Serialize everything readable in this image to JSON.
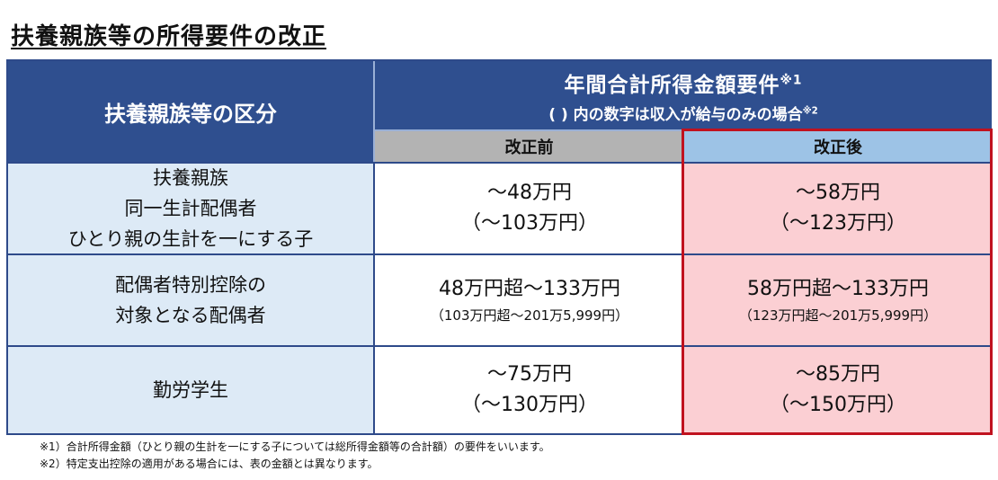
{
  "title": "扶養親族等の所得要件の改正",
  "header": {
    "category_label": "扶養親族等の区分",
    "requirement_line1": "年間合計所得金額要件",
    "requirement_line1_mark": "※1",
    "requirement_line2": "( ) 内の数字は収入が給与のみの場合",
    "requirement_line2_mark": "※2",
    "before_label": "改正前",
    "after_label": "改正後"
  },
  "rows": [
    {
      "category": [
        "扶養親族",
        "同一生計配偶者",
        "ひとり親の生計を一にする子"
      ],
      "before_main": "～48万円",
      "before_sub": "（～103万円）",
      "after_main": "～58万円",
      "after_sub": "（～123万円）"
    },
    {
      "category": [
        "配偶者特別控除の",
        "対象となる配偶者"
      ],
      "before_main": "48万円超～133万円",
      "before_sub": "（103万円超～201万5,999円）",
      "after_main": "58万円超～133万円",
      "after_sub": "（123万円超～201万5,999円）"
    },
    {
      "category": [
        "勤労学生"
      ],
      "before_main": "～75万円",
      "before_sub": "（～130万円）",
      "after_main": "～85万円",
      "after_sub": "（～150万円）"
    }
  ],
  "notes": [
    "※1）合計所得金額（ひとり親の生計を一にする子については総所得金額等の合計額）の要件をいいます。",
    "※2）特定支出控除の適用がある場合には、表の金額とは異なります。"
  ],
  "colors": {
    "header_bg": "#2f4f8f",
    "before_header_bg": "#b3b3b3",
    "after_header_bg": "#9dc3e6",
    "category_bg": "#ddeaf6",
    "after_cell_bg": "#fbcfd3",
    "highlight_border": "#c0121f"
  }
}
